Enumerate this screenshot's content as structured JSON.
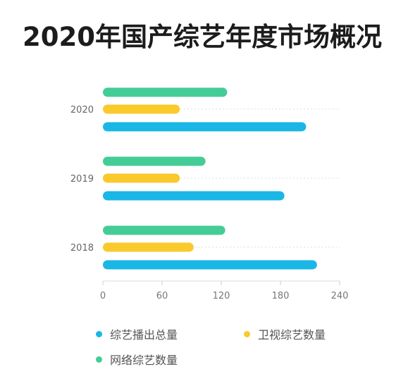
{
  "title": "2020年国产综艺年度市场概况",
  "chart_data": {
    "type": "bar",
    "orientation": "horizontal",
    "categories": [
      "2020",
      "2019",
      "2018"
    ],
    "series": [
      {
        "name": "网络综艺数量",
        "color": "#44cc96",
        "values": [
          126,
          104,
          124
        ]
      },
      {
        "name": "卫视综艺数量",
        "color": "#fac92c",
        "values": [
          78,
          78,
          92
        ]
      },
      {
        "name": "综艺播出总量",
        "color": "#1ab6e6",
        "values": [
          206,
          184,
          217
        ]
      }
    ],
    "x_ticks": [
      "0",
      "60",
      "120",
      "180",
      "240"
    ],
    "xlim": [
      0,
      240
    ],
    "grid": "dotted horizontal at each category",
    "legend": {
      "position": "bottom",
      "items": [
        "综艺播出总量",
        "卫视综艺数量",
        "网络综艺数量"
      ],
      "colors": [
        "#1ab6e6",
        "#fac92c",
        "#44cc96"
      ]
    }
  }
}
